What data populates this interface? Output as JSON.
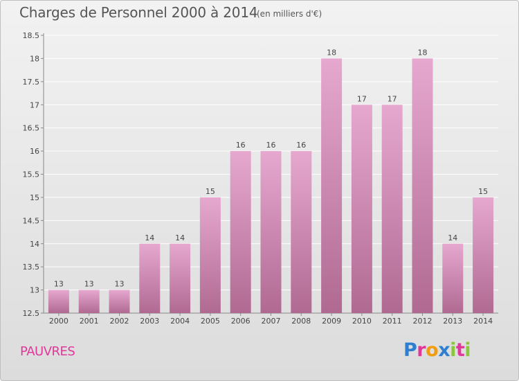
{
  "header": {
    "title": "Charges de Personnel 2000 à 2014",
    "subtitle": "(en milliers d'€)"
  },
  "footer": {
    "commune": "PAUVRES",
    "logo_text": "Proxiti",
    "logo_colors": [
      "#2f7fd0",
      "#e0389a",
      "#f39c12",
      "#2f7fd0",
      "#8cc63f",
      "#e0389a",
      "#8cc63f"
    ]
  },
  "colors": {
    "bar_top": "#e6a8cf",
    "bar_bottom": "#b06a92",
    "grid": "#ffffff",
    "axis_text": "#444444"
  },
  "chart_data": {
    "type": "bar",
    "categories": [
      "2000",
      "2001",
      "2002",
      "2003",
      "2004",
      "2005",
      "2006",
      "2007",
      "2008",
      "2009",
      "2010",
      "2011",
      "2012",
      "2013",
      "2014"
    ],
    "values": [
      13,
      13,
      13,
      14,
      14,
      15,
      16,
      16,
      16,
      18,
      17,
      17,
      18,
      14,
      15
    ],
    "value_labels": [
      "13",
      "13",
      "13",
      "14",
      "14",
      "15",
      "16",
      "16",
      "16",
      "18",
      "17",
      "17",
      "18",
      "14",
      "15"
    ],
    "ylim": [
      12.5,
      18.5
    ],
    "yticks": [
      12.5,
      13,
      13.5,
      14,
      14.5,
      15,
      15.5,
      16,
      16.5,
      17,
      17.5,
      18,
      18.5
    ],
    "ytick_labels": [
      "12.5",
      "13",
      "13.5",
      "14",
      "14.5",
      "15",
      "15.5",
      "16",
      "16.5",
      "17",
      "17.5",
      "18",
      "18.5"
    ],
    "grid": true,
    "legend": "none"
  }
}
